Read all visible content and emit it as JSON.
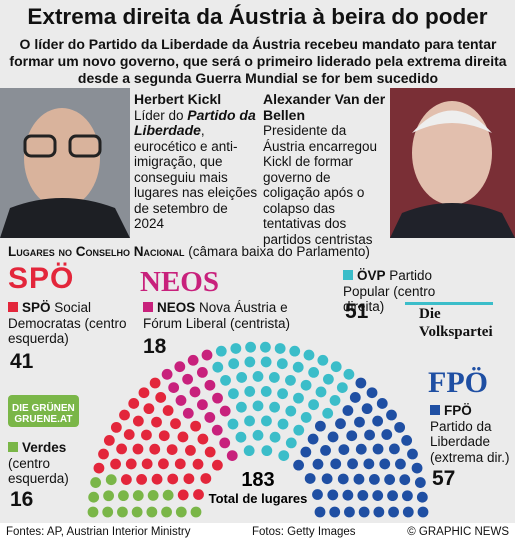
{
  "header": {
    "title": "Extrema direita da Áustria à beira do poder",
    "subtitle": "O líder do Partido da Liberdade da Áustria recebeu mandato para tentar formar um novo governo, que será o primeiro liderado pela extrema direita desde a segunda Guerra Mundial se for bem sucedido"
  },
  "people": [
    {
      "name": "Herbert Kickl",
      "text_before": "Líder do ",
      "emphasis": "Partido da Liberdade",
      "text_after": ", eurocético e anti-imigração, que conseguiu mais lugares nas eleições de setembro de 2024"
    },
    {
      "name": "Alexander Van der Bellen",
      "text_before": "Presidente da Áustria encarregou Kickl de formar governo de coligação após o colapso das tentativas dos partidos centristas"
    }
  ],
  "chart_data": {
    "type": "parliament",
    "title": "Lugares no Conselho Nacional",
    "subtitle": "(câmara baixa do Parlamento)",
    "categories": [
      "Verdes",
      "SPÖ",
      "NEOS",
      "ÖVP",
      "FPÖ"
    ],
    "descriptions": [
      "(centro esquerda)",
      "Social Democratas (centro esquerda)",
      "Nova Áustria e Fórum Liberal (centrista)",
      "Partido Popular (centro direita)",
      "Partido da Liberdade (extrema dir.)"
    ],
    "logos": [
      [
        "DIE GRÜNEN",
        "GRUENE.AT"
      ],
      [
        "SPÖ"
      ],
      [
        "NEOS"
      ],
      [
        "Die",
        "Volkspartei"
      ],
      [
        "FPÖ"
      ]
    ],
    "values": [
      16,
      41,
      18,
      51,
      57
    ],
    "colors": [
      "#7ab648",
      "#e3263b",
      "#c8217c",
      "#3bbdc9",
      "#1f4fa3"
    ],
    "total": 183,
    "total_label": "Total de lugares"
  },
  "footer": {
    "sources": "Fontes: AP, Austrian Interior Ministry",
    "photos": "Fotos: Getty Images",
    "credit": "© GRAPHIC NEWS"
  }
}
